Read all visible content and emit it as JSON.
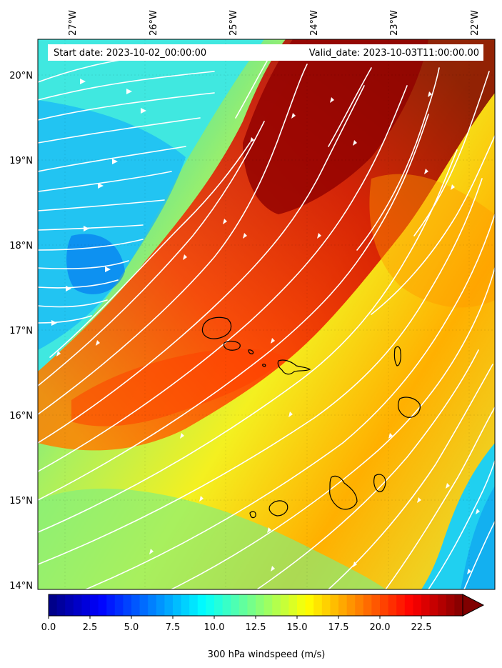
{
  "header": {
    "start_date": "Start date: 2023-10-02_00:00:00",
    "valid_date": "Valid_date: 2023-10-03T11:00:00.00"
  },
  "axes": {
    "lon_labels": [
      "27°W",
      "26°W",
      "25°W",
      "24°W",
      "23°W",
      "22°W"
    ],
    "lat_labels": [
      "20°N",
      "19°N",
      "18°N",
      "17°N",
      "16°N",
      "15°N",
      "14°N"
    ]
  },
  "colorbar": {
    "tick_labels": [
      "0.0",
      "2.5",
      "5.0",
      "7.5",
      "10.0",
      "12.5",
      "15.0",
      "17.5",
      "20.0",
      "22.5"
    ],
    "label": "300 hPa windspeed (m/s)",
    "min": 0,
    "max": 25,
    "extend": "max",
    "colormap": "jet"
  },
  "colors": {
    "streamline": "#ffffff",
    "coastline": "#000000"
  }
}
